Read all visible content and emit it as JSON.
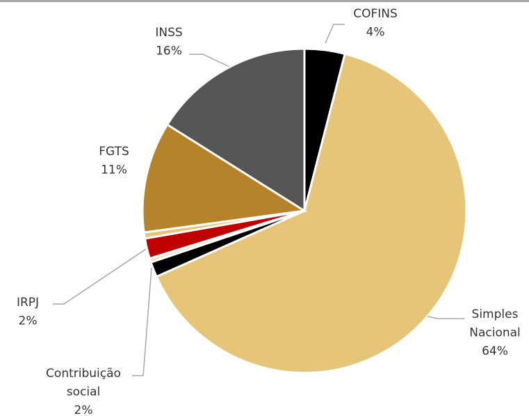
{
  "chart_data": {
    "type": "pie",
    "categories": [
      "COFINS",
      "Simples Nacional",
      "Contribuição social",
      null,
      "IRPJ",
      null,
      "FGTS",
      "INSS"
    ],
    "values": [
      4,
      64,
      1.5,
      0.4,
      2,
      0.6,
      11,
      16
    ],
    "value_labels": [
      "4%",
      "64%",
      "2%",
      null,
      "2%",
      null,
      "11%",
      "16%"
    ],
    "colors": [
      "#000000",
      "#e6c478",
      "#000000",
      "#f3e3bd",
      "#c00000",
      "#e6c478",
      "#b5842a",
      "#555555"
    ]
  }
}
